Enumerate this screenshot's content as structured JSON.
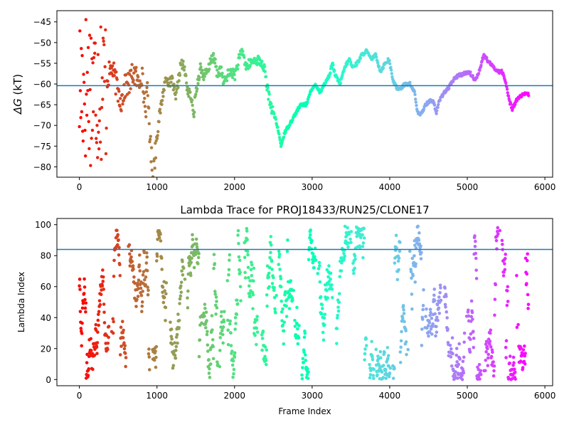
{
  "chart_data": [
    {
      "type": "scatter",
      "title": "",
      "xlabel": "",
      "ylabel": "ΔG (kT)",
      "ylabel_symbol": "ΔG",
      "ylabel_unit": "(kT)",
      "xlim": [
        -290,
        6100
      ],
      "ylim": [
        -82.5,
        -42.3
      ],
      "x_ticks": [
        0,
        1000,
        2000,
        3000,
        4000,
        5000,
        6000
      ],
      "y_ticks": [
        -80,
        -75,
        -70,
        -65,
        -60,
        -55,
        -50,
        -45
      ],
      "hline": {
        "y": -60.4,
        "color": "#1f77b4"
      },
      "colormap": "rainbow (red at frame 0 to violet at last frame)",
      "trace_keypoints": [
        [
          0,
          -60
        ],
        [
          60,
          -65
        ],
        [
          120,
          -58
        ],
        [
          170,
          -62
        ],
        [
          250,
          -57
        ],
        [
          330,
          -60
        ],
        [
          420,
          -56
        ],
        [
          500,
          -62
        ],
        [
          540,
          -64
        ],
        [
          600,
          -60
        ],
        [
          640,
          -60
        ],
        [
          700,
          -57
        ],
        [
          760,
          -60
        ],
        [
          800,
          -57
        ],
        [
          850,
          -66
        ],
        [
          880,
          -62
        ],
        [
          920,
          -76
        ],
        [
          950,
          -82
        ],
        [
          990,
          -74
        ],
        [
          1030,
          -68
        ],
        [
          1080,
          -62
        ],
        [
          1120,
          -58
        ],
        [
          1160,
          -60
        ],
        [
          1200,
          -59
        ],
        [
          1240,
          -64
        ],
        [
          1270,
          -60
        ],
        [
          1310,
          -55
        ],
        [
          1350,
          -56
        ],
        [
          1400,
          -62
        ],
        [
          1440,
          -63
        ],
        [
          1470,
          -68
        ],
        [
          1500,
          -62
        ],
        [
          1560,
          -56
        ],
        [
          1600,
          -58
        ],
        [
          1660,
          -57
        ],
        [
          1700,
          -53.5
        ],
        [
          1740,
          -54
        ],
        [
          1780,
          -58
        ],
        [
          1820,
          -56
        ],
        [
          1860,
          -60
        ],
        [
          1900,
          -58
        ],
        [
          1960,
          -57
        ],
        [
          2000,
          -58
        ],
        [
          2060,
          -54
        ],
        [
          2100,
          -52
        ],
        [
          2150,
          -56
        ],
        [
          2200,
          -55
        ],
        [
          2280,
          -54
        ],
        [
          2350,
          -55
        ],
        [
          2380,
          -56
        ],
        [
          2430,
          -62
        ],
        [
          2480,
          -66
        ],
        [
          2520,
          -68
        ],
        [
          2560,
          -71
        ],
        [
          2600,
          -75
        ],
        [
          2640,
          -72
        ],
        [
          2700,
          -70
        ],
        [
          2760,
          -68
        ],
        [
          2820,
          -66
        ],
        [
          2860,
          -65
        ],
        [
          2920,
          -65
        ],
        [
          2980,
          -62
        ],
        [
          3040,
          -60
        ],
        [
          3100,
          -62
        ],
        [
          3160,
          -60
        ],
        [
          3220,
          -58
        ],
        [
          3260,
          -55
        ],
        [
          3300,
          -58
        ],
        [
          3360,
          -60
        ],
        [
          3420,
          -56
        ],
        [
          3480,
          -54
        ],
        [
          3520,
          -56
        ],
        [
          3580,
          -55
        ],
        [
          3640,
          -53
        ],
        [
          3700,
          -52
        ],
        [
          3760,
          -54
        ],
        [
          3820,
          -53
        ],
        [
          3880,
          -57
        ],
        [
          3940,
          -55
        ],
        [
          3990,
          -54
        ],
        [
          4040,
          -59
        ],
        [
          4090,
          -61
        ],
        [
          4140,
          -61
        ],
        [
          4200,
          -60
        ],
        [
          4260,
          -60
        ],
        [
          4320,
          -62
        ],
        [
          4360,
          -67
        ],
        [
          4400,
          -67.5
        ],
        [
          4460,
          -65
        ],
        [
          4520,
          -64
        ],
        [
          4560,
          -64
        ],
        [
          4600,
          -67
        ],
        [
          4640,
          -64
        ],
        [
          4700,
          -62
        ],
        [
          4760,
          -61
        ],
        [
          4820,
          -59
        ],
        [
          4880,
          -58
        ],
        [
          4960,
          -57.5
        ],
        [
          5020,
          -57
        ],
        [
          5060,
          -58
        ],
        [
          5090,
          -59
        ],
        [
          5130,
          -58
        ],
        [
          5170,
          -56
        ],
        [
          5210,
          -53
        ],
        [
          5250,
          -54
        ],
        [
          5290,
          -55
        ],
        [
          5340,
          -56
        ],
        [
          5400,
          -57
        ],
        [
          5450,
          -57
        ],
        [
          5500,
          -60
        ],
        [
          5540,
          -64
        ],
        [
          5580,
          -66
        ],
        [
          5630,
          -64
        ],
        [
          5680,
          -63
        ],
        [
          5740,
          -62.5
        ],
        [
          5790,
          -62.5
        ]
      ]
    },
    {
      "type": "scatter",
      "title": "Lambda Trace for PROJ18433/RUN25/CLONE17",
      "xlabel": "Frame Index",
      "ylabel": "Lambda Index",
      "xlim": [
        -290,
        6100
      ],
      "ylim": [
        -4,
        104
      ],
      "x_ticks": [
        0,
        1000,
        2000,
        3000,
        4000,
        5000,
        6000
      ],
      "y_ticks": [
        0,
        20,
        40,
        60,
        80,
        100
      ],
      "hline": {
        "y": 84,
        "color": "#1f77b4"
      },
      "colormap": "rainbow (red at frame 0 to violet at last frame)",
      "n_frames": 5790,
      "lambda_range": [
        0,
        99
      ]
    }
  ]
}
